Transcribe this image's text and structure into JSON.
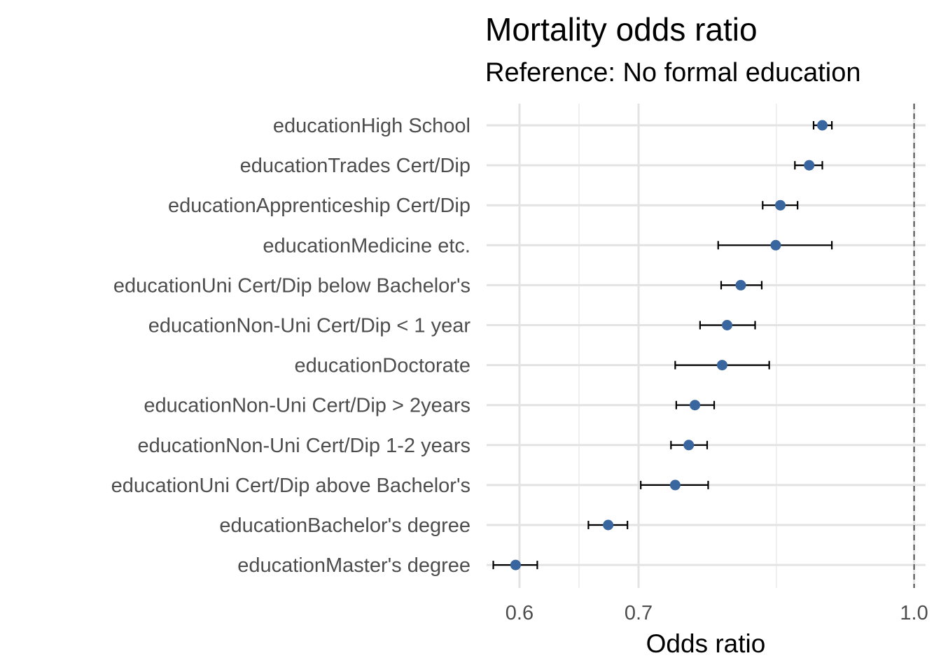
{
  "chart_data": {
    "type": "scatter",
    "title": "Mortality odds ratio",
    "subtitle": "Reference: No formal education",
    "xlabel": "Odds ratio",
    "ylabel": "",
    "x_scale": "log",
    "xlim": [
      0.575,
      1.015
    ],
    "x_ticks": [
      0.6,
      0.7,
      1.0
    ],
    "x_tick_labels": [
      "0.6",
      "0.7",
      "1.0"
    ],
    "reference_line": 1.0,
    "grid": true,
    "point_color": "#3a66a0",
    "errorbar_color": "#000000",
    "categories": [
      "educationHigh School",
      "educationTrades Cert/Dip",
      "educationApprenticeship Cert/Dip",
      "educationMedicine etc.",
      "educationUni Cert/Dip below Bachelor's",
      "educationNon-Uni Cert/Dip < 1 year",
      "educationDoctorate",
      "educationNon-Uni Cert/Dip > 2years",
      "educationNon-Uni Cert/Dip 1-2 years",
      "educationUni Cert/Dip above Bachelor's",
      "educationBachelor's degree",
      "educationMaster's degree"
    ],
    "estimates": [
      0.888,
      0.873,
      0.841,
      0.836,
      0.799,
      0.785,
      0.78,
      0.753,
      0.747,
      0.734,
      0.673,
      0.597
    ],
    "lower": [
      0.878,
      0.857,
      0.822,
      0.776,
      0.779,
      0.758,
      0.734,
      0.735,
      0.73,
      0.702,
      0.656,
      0.58
    ],
    "upper": [
      0.899,
      0.888,
      0.86,
      0.899,
      0.821,
      0.814,
      0.829,
      0.772,
      0.765,
      0.766,
      0.69,
      0.614
    ]
  }
}
